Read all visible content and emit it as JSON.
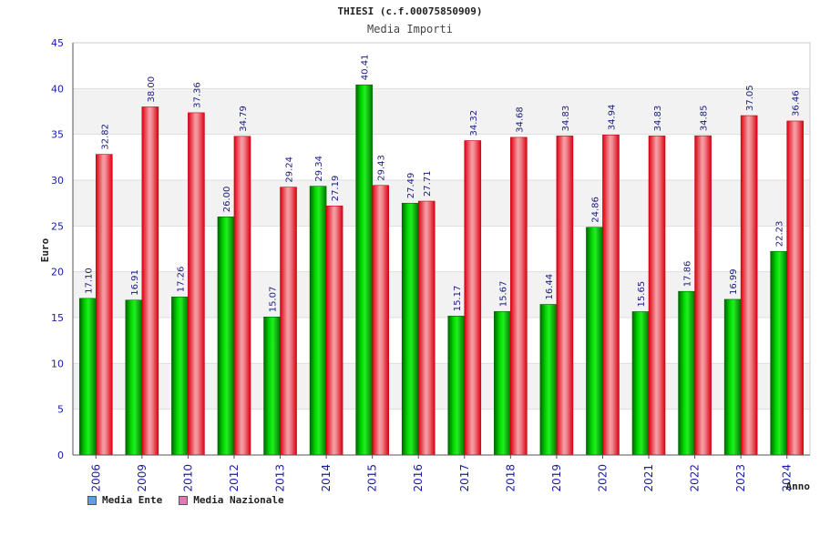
{
  "chart_data": {
    "type": "bar",
    "title": "THIESI (c.f.00075850909)",
    "subtitle": "Media Importi",
    "xlabel": "Anno",
    "ylabel": "Euro",
    "ylim": [
      0,
      45
    ],
    "yticks": [
      0,
      5,
      10,
      15,
      20,
      25,
      30,
      35,
      40,
      45
    ],
    "grid": true,
    "legend_position": "bottom-left",
    "categories": [
      "2006",
      "2009",
      "2010",
      "2012",
      "2013",
      "2014",
      "2015",
      "2016",
      "2017",
      "2018",
      "2019",
      "2020",
      "2021",
      "2022",
      "2023",
      "2024"
    ],
    "series": [
      {
        "name": "Media Ente",
        "color": "#00bb00",
        "legend_color": "#5aa0e6",
        "values": [
          17.1,
          16.91,
          17.26,
          26.0,
          15.07,
          29.34,
          40.41,
          27.49,
          15.17,
          15.67,
          16.44,
          24.86,
          15.65,
          17.86,
          16.99,
          22.23
        ],
        "labels": [
          "17.10",
          "16.91",
          "17.26",
          "26.00",
          "15.07",
          "29.34",
          "40.41",
          "27.49",
          "15.17",
          "15.67",
          "16.44",
          "24.86",
          "15.65",
          "17.86",
          "16.99",
          "22.23"
        ]
      },
      {
        "name": "Media Nazionale",
        "color": "#ee2233",
        "legend_color": "#e07bb0",
        "values": [
          32.82,
          38.0,
          37.36,
          34.79,
          29.24,
          27.19,
          29.43,
          27.71,
          34.32,
          34.68,
          34.83,
          34.94,
          34.83,
          34.85,
          37.05,
          36.46
        ],
        "labels": [
          "32.82",
          "38.00",
          "37.36",
          "34.79",
          "29.24",
          "27.19",
          "29.43",
          "27.71",
          "34.32",
          "34.68",
          "34.83",
          "34.94",
          "34.83",
          "34.85",
          "37.05",
          "36.46"
        ]
      }
    ]
  }
}
